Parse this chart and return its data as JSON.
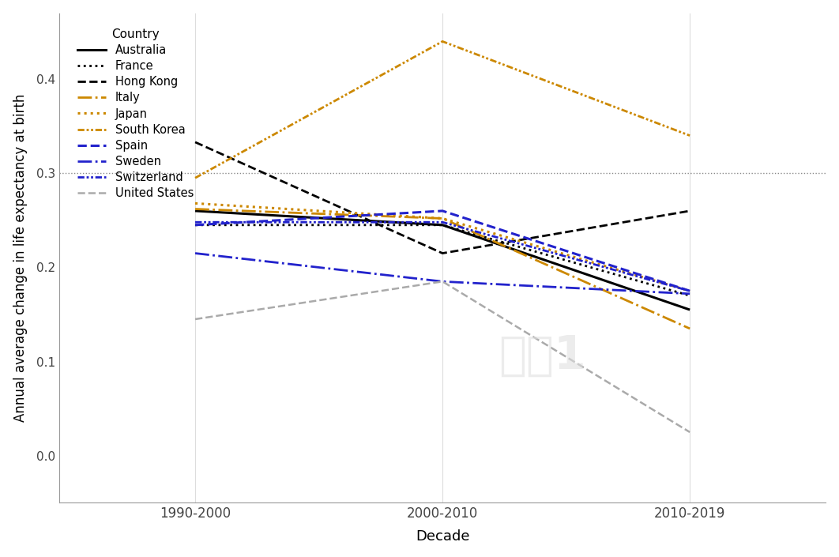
{
  "x_labels": [
    "1990-2000",
    "2000-2010",
    "2010-2019"
  ],
  "x_positions": [
    0,
    1,
    2
  ],
  "xlabel": "Decade",
  "ylabel": "Annual average change in life expectancy at birth",
  "legend_title": "Country",
  "ylim": [
    -0.05,
    0.47
  ],
  "yticks": [
    0.0,
    0.1,
    0.2,
    0.3,
    0.4
  ],
  "hline_y": 0.3,
  "countries": [
    {
      "name": "Australia",
      "color": "#000000",
      "linestyle": "solid",
      "linewidth": 2.2,
      "values": [
        0.26,
        0.245,
        0.155
      ]
    },
    {
      "name": "France",
      "color": "#000000",
      "linestyle": "dotted",
      "linewidth": 2.0,
      "values": [
        0.245,
        0.245,
        0.17
      ]
    },
    {
      "name": "Hong Kong",
      "color": "#000000",
      "linestyle": "dashed",
      "linewidth": 2.0,
      "values": [
        0.333,
        0.215,
        0.26
      ]
    },
    {
      "name": "Italy",
      "color": "#CC8800",
      "linestyle": "dashdot",
      "linewidth": 2.0,
      "values": [
        0.262,
        0.252,
        0.135
      ]
    },
    {
      "name": "Japan",
      "color": "#CC8800",
      "linestyle": "dotted",
      "linewidth": 2.2,
      "values": [
        0.268,
        0.252,
        0.175
      ]
    },
    {
      "name": "South Korea",
      "color": "#CC8800",
      "linestyle": "dashdotdotted",
      "linewidth": 2.0,
      "values": [
        0.295,
        0.44,
        0.34
      ]
    },
    {
      "name": "Spain",
      "color": "#2222CC",
      "linestyle": "dashed",
      "linewidth": 2.2,
      "values": [
        0.245,
        0.26,
        0.175
      ]
    },
    {
      "name": "Sweden",
      "color": "#2222CC",
      "linestyle": "dashdot",
      "linewidth": 2.0,
      "values": [
        0.215,
        0.185,
        0.172
      ]
    },
    {
      "name": "Switzerland",
      "color": "#2222CC",
      "linestyle": "dashdotdotted",
      "linewidth": 2.0,
      "values": [
        0.248,
        0.248,
        0.175
      ]
    },
    {
      "name": "United States",
      "color": "#AAAAAA",
      "linestyle": "dashed",
      "linewidth": 1.8,
      "values": [
        0.145,
        0.185,
        0.025
      ]
    }
  ],
  "background_color": "#FFFFFF",
  "figsize": [
    10.62,
    7.05
  ],
  "dpi": 100
}
